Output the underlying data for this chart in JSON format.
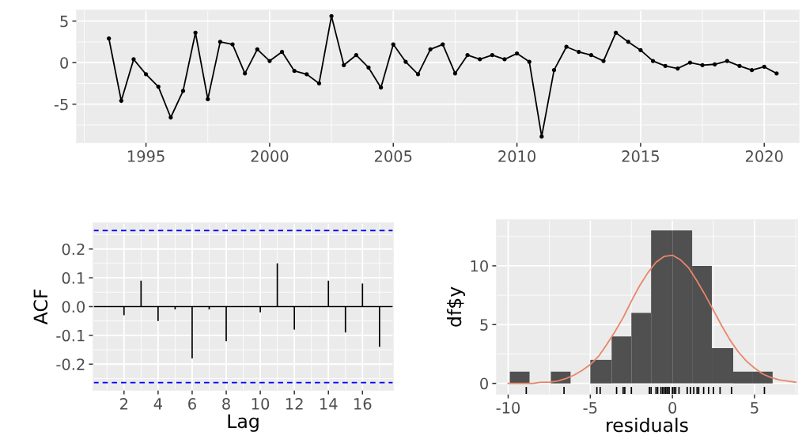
{
  "chart_data": [
    {
      "type": "line",
      "x": [
        1993.5,
        1994.0,
        1994.5,
        1995.0,
        1995.5,
        1996.0,
        1996.5,
        1997.0,
        1997.5,
        1998.0,
        1998.5,
        1999.0,
        1999.5,
        2000.0,
        2000.5,
        2001.0,
        2001.5,
        2002.0,
        2002.5,
        2003.0,
        2003.5,
        2004.0,
        2004.5,
        2005.0,
        2005.5,
        2006.0,
        2006.5,
        2007.0,
        2007.5,
        2008.0,
        2008.5,
        2009.0,
        2009.5,
        2010.0,
        2010.5,
        2011.0,
        2011.5,
        2012.0,
        2012.5,
        2013.0,
        2013.5,
        2014.0,
        2014.5,
        2015.0,
        2015.5,
        2016.0,
        2016.5,
        2017.0,
        2017.5,
        2018.0,
        2018.5,
        2019.0,
        2019.5,
        2020.0,
        2020.5
      ],
      "series": [
        {
          "color": "#000000",
          "values": [
            2.9,
            -4.6,
            0.4,
            -1.4,
            -2.9,
            -6.6,
            -3.4,
            3.6,
            -4.4,
            2.5,
            2.2,
            -1.3,
            1.6,
            0.2,
            1.3,
            -1.0,
            -1.4,
            -2.5,
            5.6,
            -0.3,
            0.9,
            -0.6,
            -3.0,
            2.2,
            0.1,
            -1.4,
            1.6,
            2.2,
            -1.3,
            0.9,
            0.4,
            0.9,
            0.4,
            1.1,
            0.1,
            -8.9,
            -0.9,
            1.9,
            1.3,
            0.9,
            0.2,
            3.6,
            2.5,
            1.5,
            0.2,
            -0.4,
            -0.7,
            0.0,
            -0.3,
            -0.2,
            0.2,
            -0.4,
            -0.9,
            -0.5,
            -1.3
          ]
        }
      ],
      "marker": "circle",
      "xlim": [
        1992.2,
        2021.4
      ],
      "xticks": [
        1995,
        2000,
        2005,
        2010,
        2015,
        2020
      ],
      "ylim": [
        -9.6,
        6.3
      ],
      "yticks": [
        -5,
        0,
        5
      ],
      "grid": true
    },
    {
      "type": "bar",
      "x": [
        1,
        2,
        3,
        4,
        5,
        6,
        7,
        8,
        9,
        10,
        11,
        12,
        13,
        14,
        15,
        16,
        17
      ],
      "series": [
        {
          "color": "#000000",
          "values": [
            0.0,
            -0.03,
            0.09,
            -0.05,
            -0.01,
            -0.18,
            -0.01,
            -0.12,
            0.0,
            -0.02,
            0.15,
            -0.08,
            0.0,
            0.09,
            -0.09,
            0.08,
            -0.14
          ]
        }
      ],
      "xlabel": "Lag",
      "ylabel": "ACF",
      "xlim": [
        0.2,
        17.8
      ],
      "xticks": [
        2,
        4,
        6,
        8,
        10,
        12,
        14,
        16
      ],
      "ylim": [
        -0.29,
        0.29
      ],
      "yticks": [
        -0.2,
        -0.1,
        {
          "value": 0,
          "label": "0.0"
        },
        0.1,
        0.2
      ],
      "ref_lines": [
        {
          "axis": "y",
          "value": 0,
          "color": "#000000"
        },
        {
          "axis": "y",
          "value": 0.264,
          "color": "#0000ff",
          "line_style": "dashed"
        },
        {
          "axis": "y",
          "value": -0.264,
          "color": "#0000ff",
          "line_style": "dashed"
        }
      ],
      "grid": true
    },
    {
      "type": "histogram",
      "bins": [
        -9.9,
        -8.7,
        -7.4,
        -6.2,
        -5.0,
        -3.7,
        -2.5,
        -1.3,
        0.0,
        1.2,
        2.4,
        3.7,
        4.9,
        6.1
      ],
      "series": [
        {
          "type": "histogram",
          "color": "#505050",
          "values": [
            1,
            0,
            1,
            0,
            2,
            4,
            6,
            13,
            13,
            10,
            3,
            1,
            1
          ]
        },
        {
          "type": "line",
          "color": "#e8866a",
          "x": [
            -10,
            -9.5,
            -9,
            -8.5,
            -8,
            -7.5,
            -7,
            -6.5,
            -6,
            -5.5,
            -5,
            -4.5,
            -4,
            -3.5,
            -3,
            -2.5,
            -2,
            -1.5,
            -1,
            -0.5,
            0,
            0.5,
            1,
            1.5,
            2,
            2.5,
            3,
            3.5,
            4,
            4.5,
            5,
            5.5,
            6,
            6.5,
            7,
            7.5
          ],
          "values": [
            0.0,
            0.0,
            0.0,
            0.0,
            0.1,
            0.1,
            0.2,
            0.4,
            0.7,
            1.1,
            1.6,
            2.3,
            3.3,
            4.4,
            5.6,
            7.0,
            8.3,
            9.4,
            10.3,
            10.8,
            10.9,
            10.5,
            9.8,
            8.7,
            7.5,
            6.2,
            4.9,
            3.7,
            2.7,
            1.9,
            1.3,
            0.8,
            0.5,
            0.3,
            0.2,
            0.1
          ]
        },
        {
          "type": "bar",
          "color": "#000000",
          "x": [
            -8.9,
            -6.6,
            -4.6,
            -4.4,
            -3.4,
            -3.0,
            -2.9,
            -2.5,
            -1.4,
            -1.3,
            -1.0,
            -0.9,
            -0.7,
            -0.6,
            -0.5,
            -0.4,
            -0.3,
            -0.2,
            0.0,
            0.1,
            0.2,
            0.4,
            0.9,
            1.1,
            1.3,
            1.5,
            1.6,
            1.9,
            2.2,
            2.5,
            2.9,
            3.6,
            5.6
          ],
          "base": [
            -0.9,
            -0.9,
            -0.9,
            -0.9,
            -0.9,
            -0.9,
            -0.9,
            -0.9,
            -0.9,
            -0.9,
            -0.9,
            -0.9,
            -0.9,
            -0.9,
            -0.9,
            -0.9,
            -0.9,
            -0.9,
            -0.9,
            -0.9,
            -0.9,
            -0.9,
            -0.9,
            -0.9,
            -0.9,
            -0.9,
            -0.9,
            -0.9,
            -0.9,
            -0.9,
            -0.9,
            -0.9,
            -0.9
          ],
          "values": [
            0.6,
            0.6,
            0.6,
            0.6,
            0.6,
            0.6,
            0.6,
            0.6,
            0.6,
            0.6,
            0.6,
            0.6,
            0.6,
            0.6,
            0.6,
            0.6,
            0.6,
            0.6,
            0.6,
            0.6,
            0.6,
            0.6,
            0.6,
            0.6,
            0.6,
            0.6,
            0.6,
            0.6,
            0.6,
            0.6,
            0.6,
            0.6,
            0.6
          ]
        }
      ],
      "xlabel": "residuals",
      "ylabel": "df$y",
      "xlim": [
        -10.7,
        7.6
      ],
      "xticks": [
        -10,
        -5,
        0,
        5
      ],
      "ylim": [
        -0.9,
        13.9
      ],
      "yticks": [
        0,
        5,
        10
      ],
      "grid": true
    }
  ]
}
